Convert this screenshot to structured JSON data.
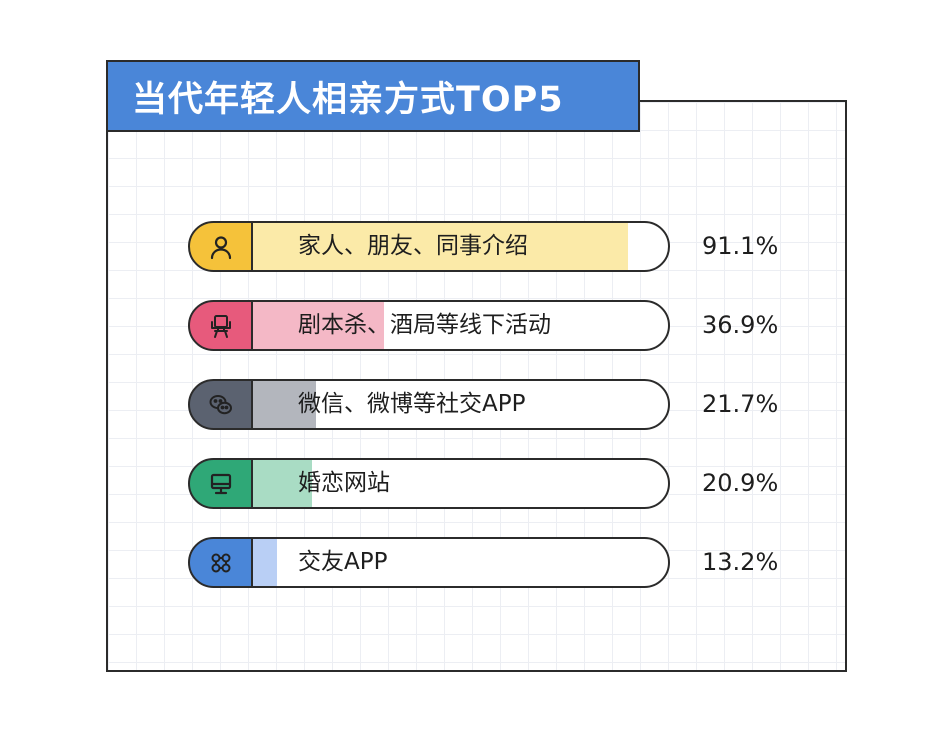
{
  "chart_data": {
    "type": "bar",
    "title": "当代年轻人相亲方式TOP5",
    "orientation": "horizontal",
    "xlim": [
      0,
      100
    ],
    "categories": [
      "家人、朋友、同事介绍",
      "剧本杀、酒局等线下活动",
      "微信、微博等社交APP",
      "婚恋网站",
      "交友APP"
    ],
    "values": [
      91.1,
      36.9,
      21.7,
      20.9,
      13.2
    ],
    "value_labels": [
      "91.1%",
      "36.9%",
      "21.7%",
      "20.9%",
      "13.2%"
    ],
    "icons": [
      "person-icon",
      "chair-icon",
      "wechat-icon",
      "monitor-icon",
      "app-grid-icon"
    ],
    "icon_colors": [
      "#f5c23a",
      "#e75a7c",
      "#5b6270",
      "#2fa877",
      "#4a86d8"
    ],
    "fill_colors": [
      "#fbeaa8",
      "#f4b8c6",
      "#b3b6bd",
      "#a9dcc4",
      "#b9cff5"
    ],
    "grid": true
  },
  "colors": {
    "title_bg": "#4a86d8",
    "border": "#2b2b2b",
    "grid_line": "#eceef3"
  }
}
